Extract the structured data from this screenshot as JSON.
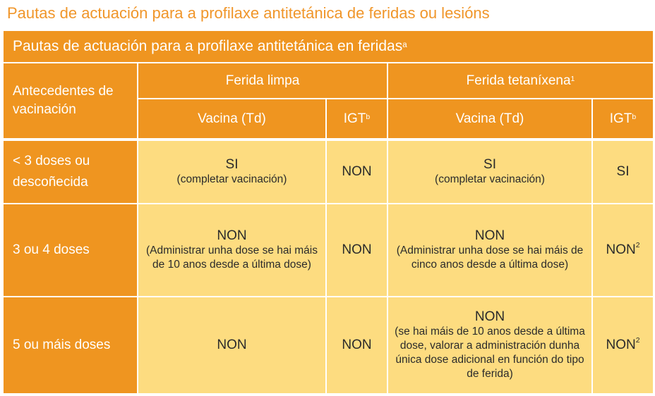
{
  "page_title": "Pautas de actuación para a profilaxe antitetánica de feridas ou lesións",
  "table": {
    "banner": {
      "text": "Pautas de actuación para a profilaxe antitetánica en feridas",
      "sup": "a"
    },
    "header": {
      "antecedentes": "Antecedentes de vacinación",
      "ferida_limpa": "Ferida limpa",
      "ferida_tetanixena": {
        "text": "Ferida tetaníxena",
        "sup": "1"
      },
      "vacina": "Vacina (Td)",
      "igt": {
        "text": "IGT",
        "sup": "b"
      }
    },
    "rows": [
      {
        "label": "< 3 doses ou descoñecida",
        "limpa_vacina": {
          "main": "SI",
          "note": "(completar vacinación)"
        },
        "limpa_igt": {
          "main": "NON"
        },
        "tet_vacina": {
          "main": "SI",
          "note": "(completar vacinación)"
        },
        "tet_igt": {
          "main": "SI",
          "sup": ""
        }
      },
      {
        "label": "3 ou 4 doses",
        "limpa_vacina": {
          "main": "NON",
          "note": "(Administrar unha dose se hai máis de 10 anos desde a última dose)"
        },
        "limpa_igt": {
          "main": "NON"
        },
        "tet_vacina": {
          "main": "NON",
          "note": "(Administrar unha dose se hai máis de cinco anos desde a última dose)"
        },
        "tet_igt": {
          "main": "NON",
          "sup": "2"
        }
      },
      {
        "label": "5 ou máis doses",
        "limpa_vacina": {
          "main": "NON",
          "note": ""
        },
        "limpa_igt": {
          "main": "NON"
        },
        "tet_vacina": {
          "main": "NON",
          "note": "(se hai máis de 10 anos desde a última dose, valorar a administración dunha única dose adicional en función do tipo de ferida)"
        },
        "tet_igt": {
          "main": "NON",
          "sup": "2"
        }
      }
    ]
  }
}
